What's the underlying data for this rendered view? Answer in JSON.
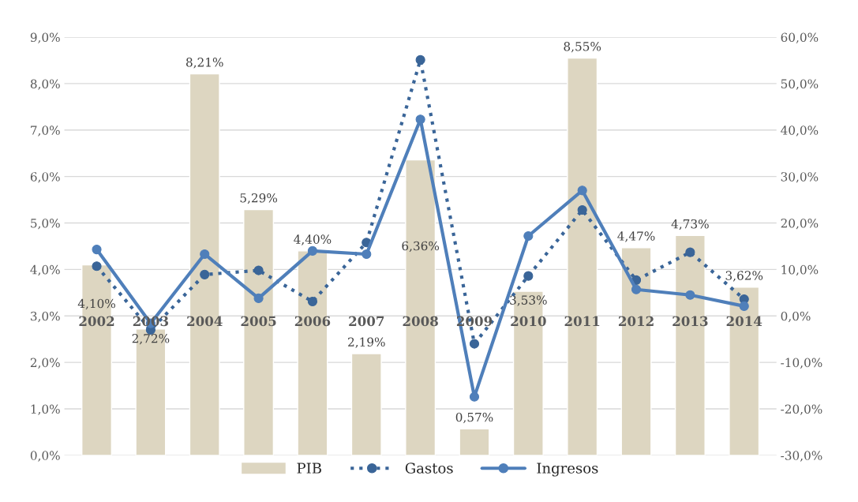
{
  "chart_data": {
    "type": "bar",
    "categories": [
      "2002",
      "2003",
      "2004",
      "2005",
      "2006",
      "2007",
      "2008",
      "2009",
      "2010",
      "2011",
      "2012",
      "2013",
      "2014"
    ],
    "series": [
      {
        "name": "PIB",
        "type": "bar",
        "color": "#ddd6c1",
        "values": [
          4.1,
          2.72,
          8.21,
          5.29,
          4.4,
          2.19,
          6.36,
          0.57,
          3.53,
          8.55,
          4.47,
          4.73,
          3.62
        ],
        "value_labels": [
          "4,10%",
          "2,72%",
          "8,21%",
          "5,29%",
          "4,40%",
          "2,19%",
          "6,36%",
          "0,57%",
          "3,53%",
          "8,55%",
          "4,47%",
          "4,73%",
          "3,62%"
        ]
      },
      {
        "name": "Gastos",
        "type": "line",
        "axis": "y2",
        "color": "#3a6598",
        "line_style": "dotted",
        "marker": "circle",
        "values": [
          10.7,
          -3.0,
          8.9,
          9.8,
          3.1,
          15.8,
          55.1,
          -6.0,
          8.6,
          22.8,
          7.7,
          13.7,
          3.6
        ]
      },
      {
        "name": "Ingresos",
        "type": "line",
        "axis": "y2",
        "color": "#4f7fba",
        "line_style": "solid",
        "marker": "circle",
        "values": [
          14.3,
          -1.6,
          13.3,
          3.8,
          14.0,
          13.3,
          42.3,
          -17.4,
          17.2,
          27.0,
          5.7,
          4.5,
          2.1
        ]
      }
    ],
    "ylim": [
      0,
      9
    ],
    "yticks": [
      {
        "value": 0,
        "label": "0,0%"
      },
      {
        "value": 1,
        "label": "1,0%"
      },
      {
        "value": 2,
        "label": "2,0%"
      },
      {
        "value": 3,
        "label": "3,0%"
      },
      {
        "value": 4,
        "label": "4,0%"
      },
      {
        "value": 5,
        "label": "5,0%"
      },
      {
        "value": 6,
        "label": "6,0%"
      },
      {
        "value": 7,
        "label": "7,0%"
      },
      {
        "value": 8,
        "label": "8,0%"
      },
      {
        "value": 9,
        "label": "9,0%"
      }
    ],
    "y2lim": [
      -30,
      60
    ],
    "y2ticks": [
      {
        "value": -30,
        "label": "-30,0%"
      },
      {
        "value": -20,
        "label": "-20,0%"
      },
      {
        "value": -10,
        "label": "-10,0%"
      },
      {
        "value": 0,
        "label": "0,0%"
      },
      {
        "value": 10,
        "label": "10,0%"
      },
      {
        "value": 20,
        "label": "20,0%"
      },
      {
        "value": 30,
        "label": "30,0%"
      },
      {
        "value": 40,
        "label": "40,0%"
      },
      {
        "value": 50,
        "label": "50,0%"
      },
      {
        "value": 60,
        "label": "60,0%"
      }
    ],
    "grid": "y",
    "legend": "bottom"
  }
}
